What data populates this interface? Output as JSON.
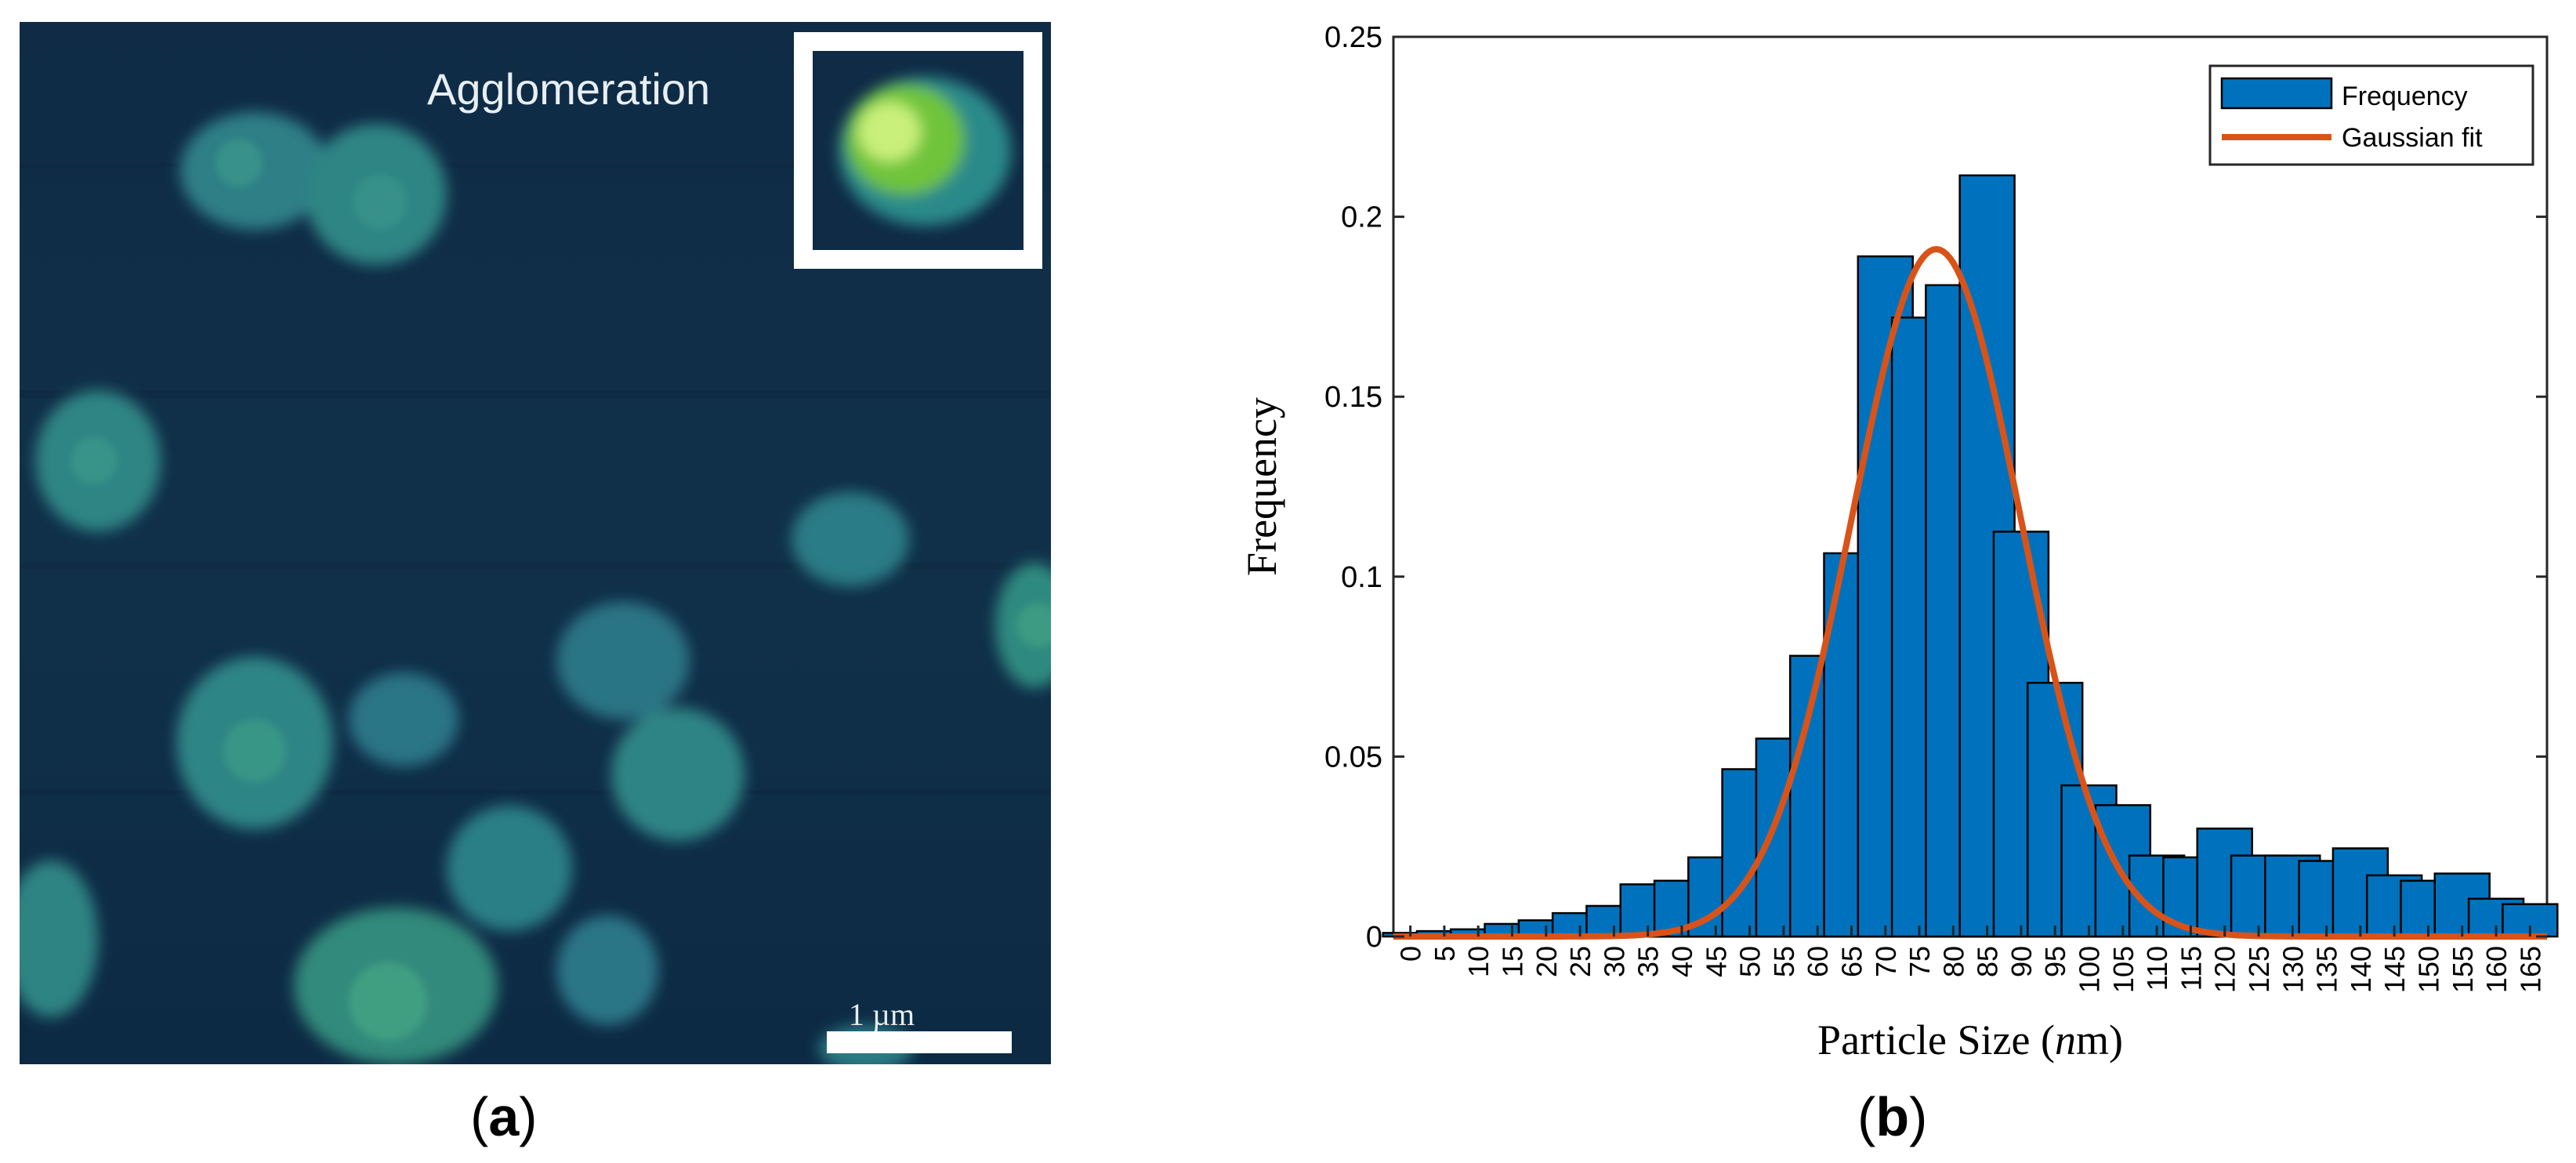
{
  "panel_a": {
    "caption_open": "(",
    "caption_letter": "a",
    "caption_close": ")",
    "annotation": "Agglomeration",
    "scale_bar_label": "1 µm"
  },
  "panel_b": {
    "caption_open": "(",
    "caption_letter": "b",
    "caption_close": ")"
  },
  "chart_data": {
    "type": "bar",
    "title": "",
    "xlabel": "Particle Size (nm)",
    "ylabel": "Frequency",
    "categories": [
      "0",
      "5",
      "10",
      "15",
      "20",
      "25",
      "30",
      "35",
      "40",
      "45",
      "50",
      "55",
      "60",
      "65",
      "70",
      "75",
      "80",
      "85",
      "90",
      "95",
      "100",
      "105",
      "110",
      "115",
      "120",
      "125",
      "130",
      "135",
      "140",
      "145",
      "150",
      "155",
      "160",
      "165"
    ],
    "series": [
      {
        "name": "Frequency",
        "values": [
          0.001,
          0.0015,
          0.002,
          0.0035,
          0.0045,
          0.0065,
          0.0085,
          0.0145,
          0.0155,
          0.022,
          0.0465,
          0.055,
          0.078,
          0.1065,
          0.189,
          0.172,
          0.181,
          0.2115,
          0.1125,
          0.0705,
          0.042,
          0.0365,
          0.0225,
          0.022,
          0.03,
          0.0225,
          0.0225,
          0.021,
          0.0245,
          0.017,
          0.0155,
          0.0175,
          0.0105,
          0.009
        ]
      }
    ],
    "fit": {
      "name": "Gaussian fit",
      "mean": 77.5,
      "sigma": 12.5,
      "peak": 0.191
    },
    "ylim": [
      0,
      0.25
    ],
    "xlim": [
      -2.5,
      167.5
    ],
    "yticks": [
      0,
      0.05,
      0.1,
      0.15,
      0.2,
      0.25
    ],
    "ytick_labels": [
      "0",
      "0.05",
      "0.1",
      "0.15",
      "0.2",
      "0.25"
    ],
    "legend": {
      "position": "top-right",
      "entries": [
        "Frequency",
        "Gaussian fit"
      ]
    },
    "colors": {
      "bar": "#0072bd",
      "bar_edge": "#000000",
      "fit": "#d95319"
    }
  }
}
